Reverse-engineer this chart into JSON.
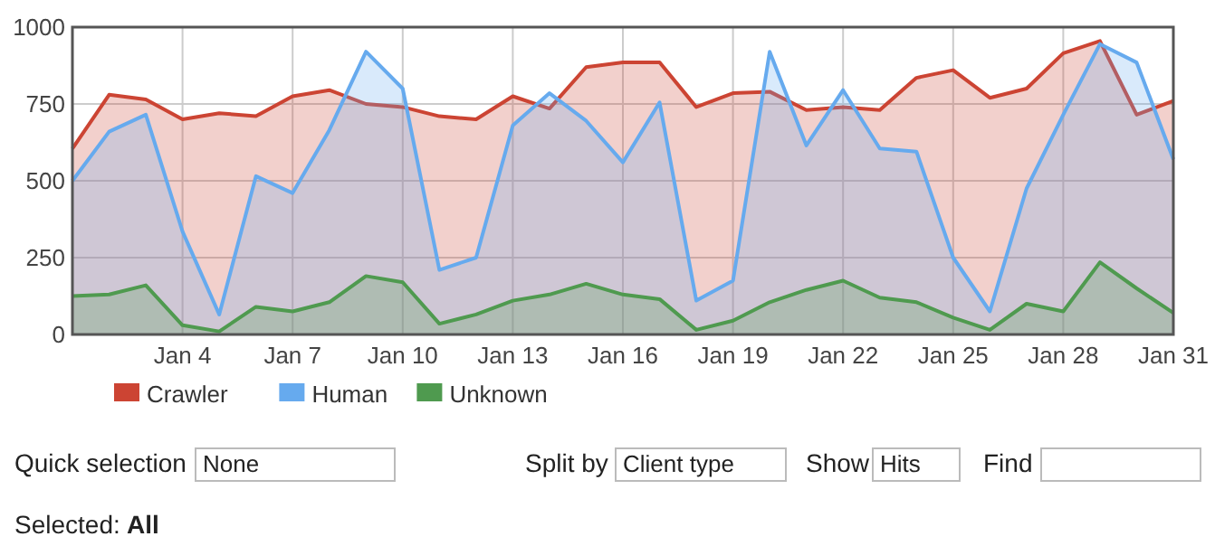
{
  "chart_data": {
    "type": "area",
    "categories": [
      null,
      null,
      null,
      "Jan 4",
      null,
      null,
      "Jan 7",
      null,
      null,
      "Jan 10",
      null,
      null,
      "Jan 13",
      null,
      null,
      "Jan 16",
      null,
      null,
      "Jan 19",
      null,
      null,
      "Jan 22",
      null,
      null,
      "Jan 25",
      null,
      null,
      "Jan 28",
      null,
      null,
      "Jan 31"
    ],
    "series": [
      {
        "name": "Crawler",
        "color": "#cc4433",
        "values": [
          605,
          780,
          765,
          700,
          720,
          710,
          775,
          795,
          750,
          740,
          710,
          700,
          775,
          735,
          870,
          885,
          885,
          740,
          785,
          790,
          730,
          740,
          730,
          835,
          860,
          770,
          800,
          915,
          955,
          715,
          760
        ]
      },
      {
        "name": "Human",
        "color": "#66aaee",
        "values": [
          500,
          660,
          715,
          335,
          65,
          515,
          460,
          665,
          920,
          800,
          210,
          250,
          680,
          785,
          695,
          560,
          755,
          110,
          175,
          920,
          615,
          795,
          605,
          595,
          250,
          75,
          475,
          715,
          945,
          885,
          570
        ]
      },
      {
        "name": "Unknown",
        "color": "#4f9a4f",
        "values": [
          125,
          130,
          160,
          30,
          10,
          90,
          75,
          105,
          190,
          170,
          35,
          65,
          110,
          130,
          165,
          130,
          115,
          15,
          45,
          105,
          145,
          175,
          120,
          105,
          55,
          15,
          100,
          75,
          235,
          150,
          70
        ]
      }
    ],
    "ylim": [
      0,
      1000
    ],
    "yticks": [
      0,
      250,
      500,
      750,
      1000
    ],
    "grid": true,
    "legend": "bottom",
    "annotations": [
      "Quick selection",
      "None",
      "Split by",
      "Client type",
      "Show",
      "Hits",
      "Find",
      "Selected:",
      "All"
    ]
  }
}
